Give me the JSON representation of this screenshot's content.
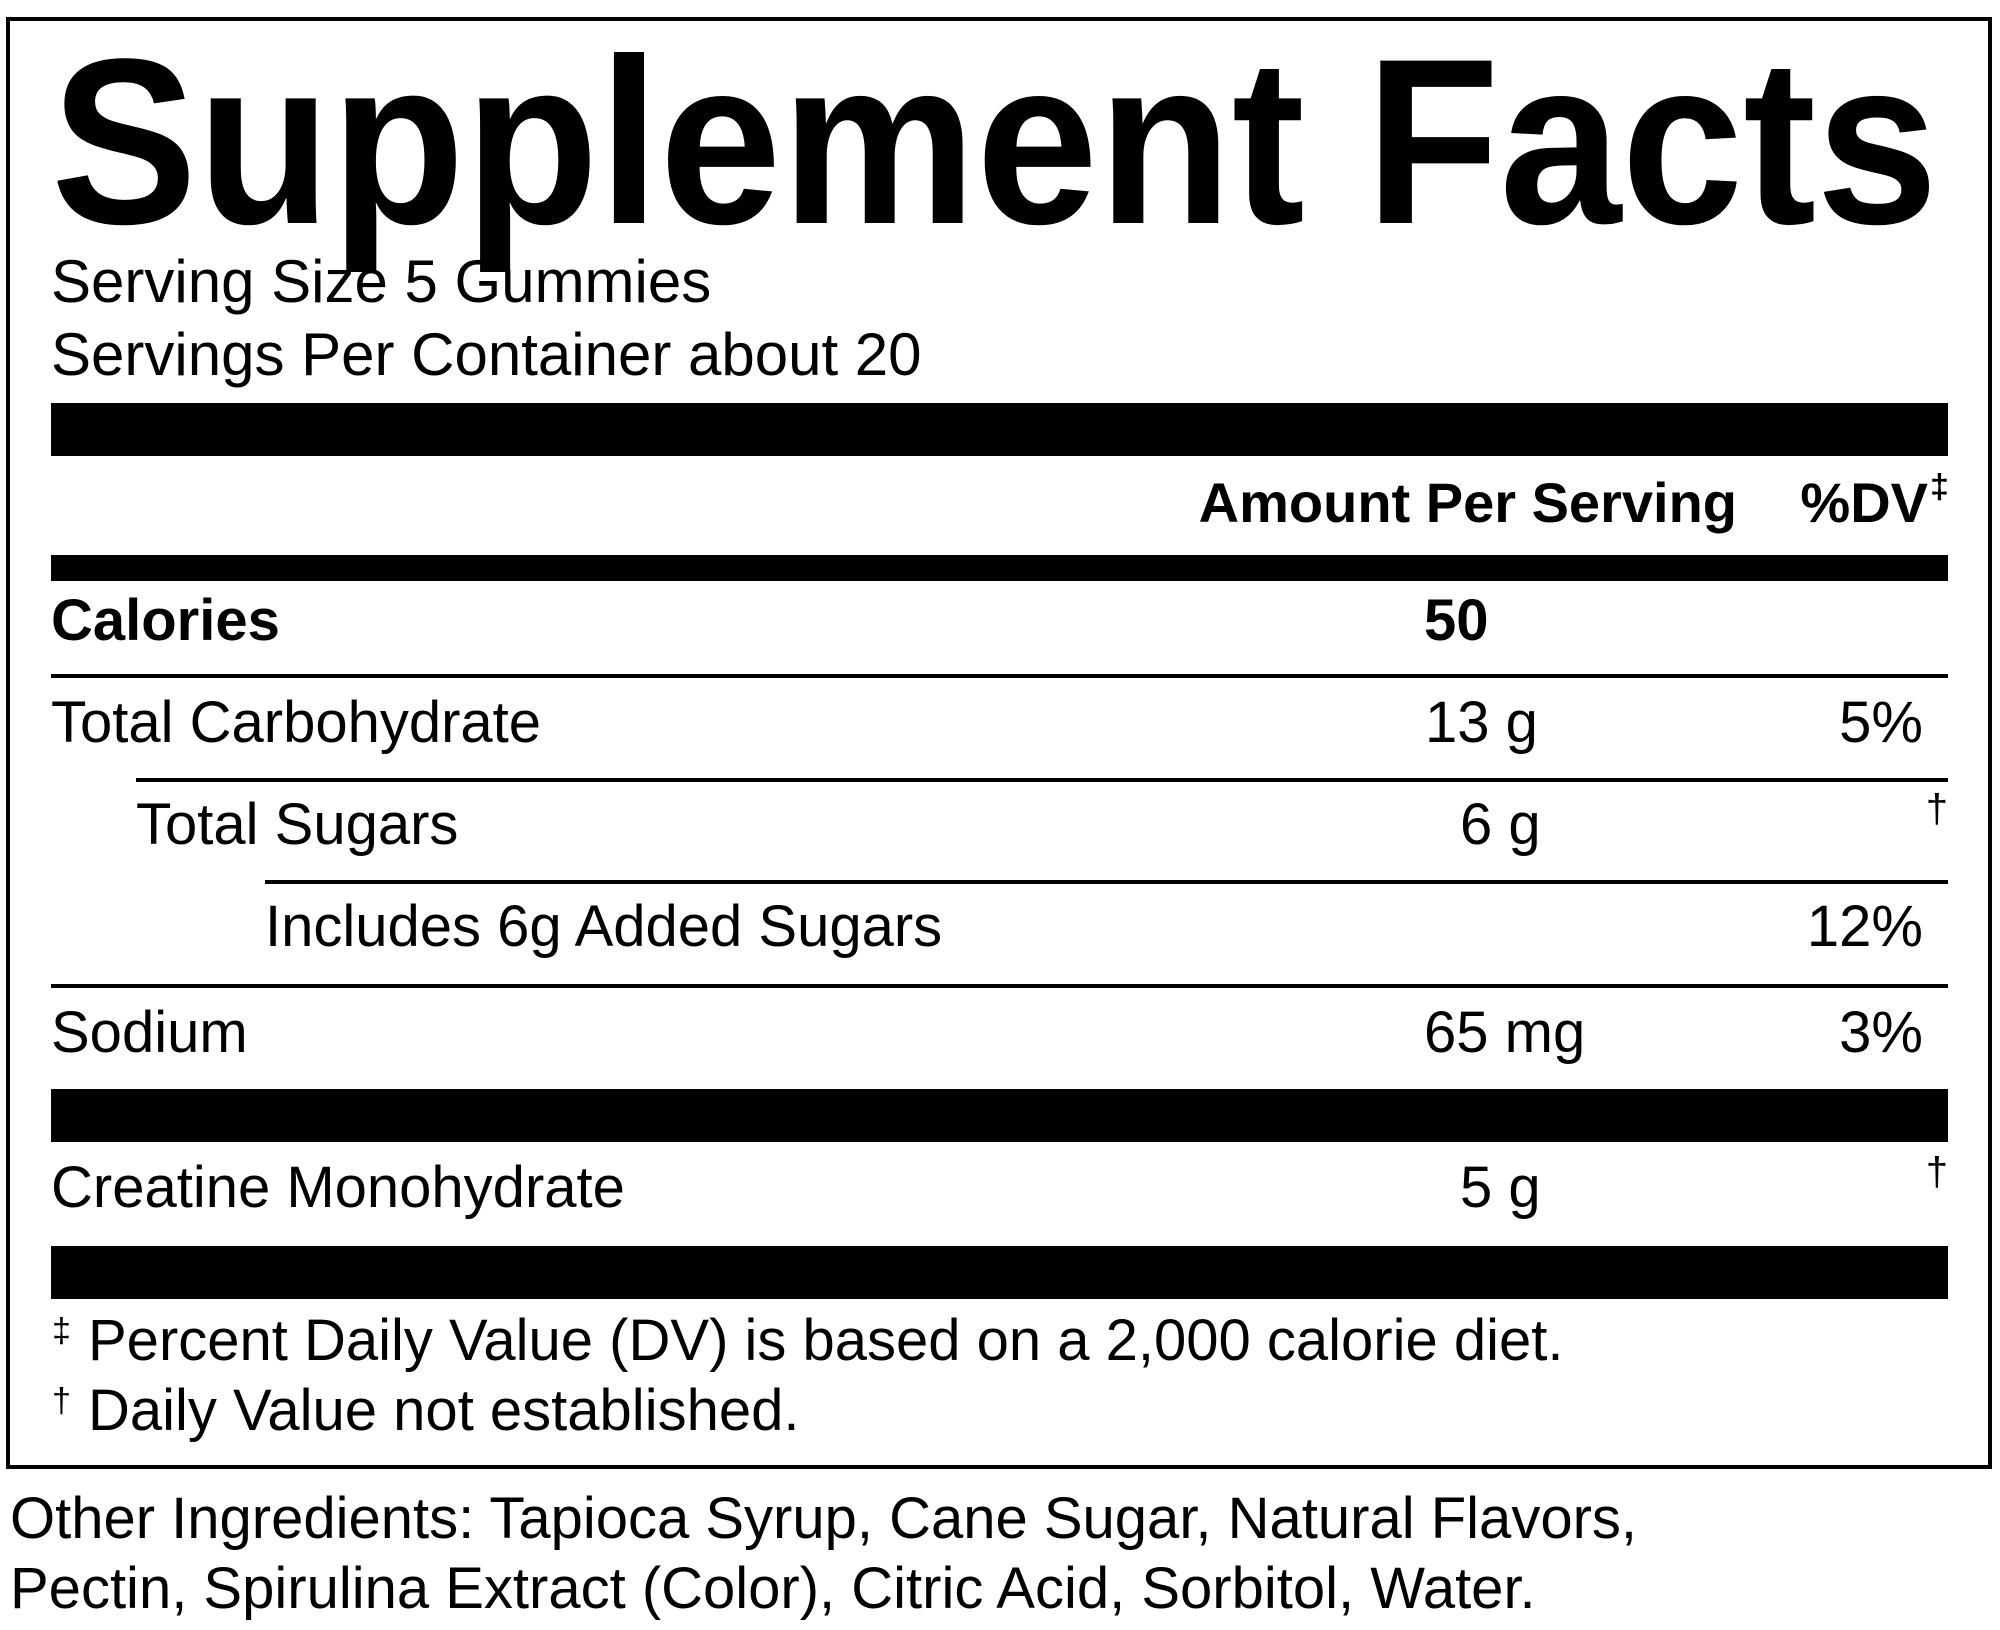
{
  "header": {
    "title": "Supplement Facts"
  },
  "serving": {
    "size": "Serving Size 5 Gummies",
    "per_container": "Servings Per Container about 20"
  },
  "table": {
    "header": {
      "amount": "Amount Per Serving",
      "dv": "%DV",
      "dv_marker": "‡"
    },
    "rows": [
      {
        "label": "Calories",
        "amount": "50"
      },
      {
        "label": "Total Carbohydrate",
        "amount": "13 g",
        "dv": "5%"
      },
      {
        "label": "Total Sugars",
        "amount": "6 g",
        "dv": "†"
      },
      {
        "label": "Includes 6g Added Sugars",
        "dv": "12%"
      },
      {
        "label": "Sodium",
        "amount": "65 mg",
        "dv": "3%"
      },
      {
        "label": "Creatine Monohydrate",
        "amount": "5 g",
        "dv": "†"
      }
    ]
  },
  "footnotes": [
    {
      "symbol": "‡",
      "text": "Percent Daily Value (DV) is based on a 2,000 calorie diet."
    },
    {
      "symbol": "†",
      "text": "Daily Value not established."
    }
  ],
  "other_ingredients": [
    "Other Ingredients: Tapioca Syrup, Cane Sugar, Natural Flavors,",
    "Pectin, Spirulina Extract (Color), Citric Acid, Sorbitol, Water."
  ]
}
